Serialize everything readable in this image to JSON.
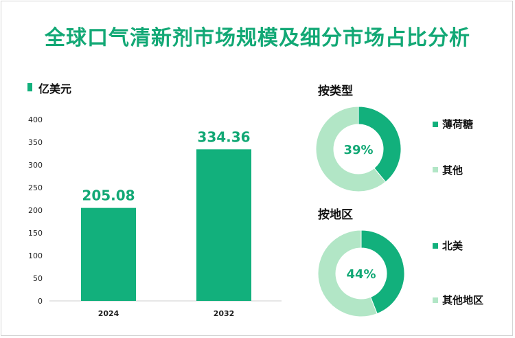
{
  "title": "全球口气清新剂市场规模及细分市场占比分析",
  "colors": {
    "accent": "#12b07c",
    "light": "#b2e6c6"
  },
  "chart_data": [
    {
      "type": "bar",
      "unit_label": "亿美元",
      "categories": [
        "2024",
        "2032"
      ],
      "values": [
        205.08,
        334.36
      ],
      "value_labels": [
        "205.08",
        "334.36"
      ],
      "ylim": [
        0,
        400
      ],
      "yticks": [
        "0",
        "50",
        "100",
        "150",
        "200",
        "250",
        "300",
        "350",
        "400"
      ],
      "grid": false
    },
    {
      "type": "pie",
      "title": "按类型",
      "center_label": "39%",
      "slices": [
        {
          "name": "薄荷糖",
          "value": 39,
          "color": "#12b07c"
        },
        {
          "name": "其他",
          "value": 61,
          "color": "#b2e6c6"
        }
      ]
    },
    {
      "type": "pie",
      "title": "按地区",
      "center_label": "44%",
      "slices": [
        {
          "name": "北美",
          "value": 44,
          "color": "#12b07c"
        },
        {
          "name": "其他地区",
          "value": 56,
          "color": "#b2e6c6"
        }
      ]
    }
  ]
}
